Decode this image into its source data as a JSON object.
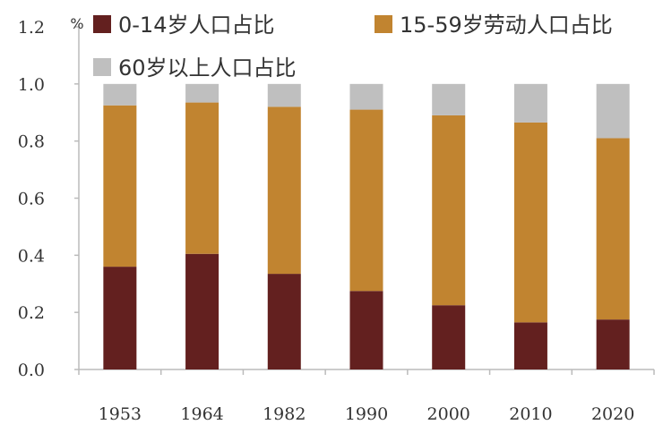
{
  "chart_data": {
    "type": "bar",
    "stacked": true,
    "title": "",
    "xlabel": "",
    "ylabel": "",
    "y_unit": "%",
    "ylim": [
      0,
      1.2
    ],
    "yticks": [
      "0.0",
      "0.2",
      "0.4",
      "0.6",
      "0.8",
      "1.0",
      "1.2"
    ],
    "grid": false,
    "legend_position": "top",
    "categories": [
      "1953",
      "1964",
      "1982",
      "1990",
      "2000",
      "2010",
      "2020"
    ],
    "series": [
      {
        "name": "0-14岁人口占比",
        "color": "#63201f",
        "values": [
          0.36,
          0.405,
          0.335,
          0.275,
          0.225,
          0.165,
          0.175
        ]
      },
      {
        "name": "15-59岁劳动人口占比",
        "color": "#c18430",
        "values": [
          0.565,
          0.53,
          0.585,
          0.635,
          0.665,
          0.7,
          0.635
        ]
      },
      {
        "name": "60岁以上人口占比",
        "color": "#bfbfbf",
        "values": [
          0.075,
          0.065,
          0.08,
          0.09,
          0.11,
          0.135,
          0.19
        ]
      }
    ]
  }
}
